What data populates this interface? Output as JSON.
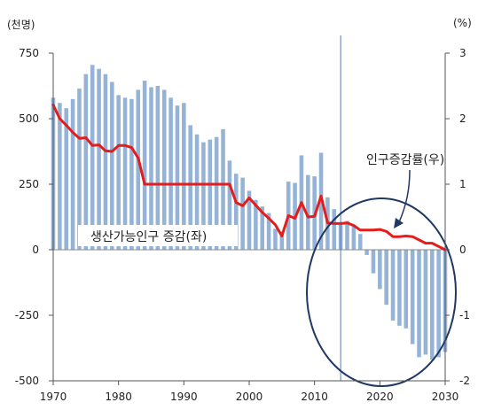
{
  "chart_data": {
    "type": "bar+line",
    "left_axis": {
      "unit_label": "(천명)",
      "ylim": [
        -500,
        750
      ],
      "ticks": [
        750,
        500,
        250,
        0,
        -250,
        -500
      ],
      "tick_labels": [
        "750",
        "500",
        "250",
        "0",
        "-250",
        "-500"
      ]
    },
    "right_axis": {
      "unit_label": "(%)",
      "ylim": [
        -2,
        3
      ],
      "ticks": [
        3,
        2,
        1,
        0,
        -1,
        -2
      ],
      "tick_labels": [
        "3",
        "2",
        "1",
        "0",
        "-1",
        "-2"
      ]
    },
    "x_axis": {
      "ticks": [
        1970,
        1980,
        1990,
        2000,
        2010,
        2020,
        2030
      ],
      "tick_labels": [
        "1970",
        "1980",
        "1990",
        "2000",
        "2010",
        "2020",
        "2030"
      ]
    },
    "series": [
      {
        "name": "생산가능인구 증감(좌)",
        "kind": "bar",
        "axis": "left",
        "color": "#95b3d7",
        "x": [
          1970,
          1971,
          1972,
          1973,
          1974,
          1975,
          1976,
          1977,
          1978,
          1979,
          1980,
          1981,
          1982,
          1983,
          1984,
          1985,
          1986,
          1987,
          1988,
          1989,
          1990,
          1991,
          1992,
          1993,
          1994,
          1995,
          1996,
          1997,
          1998,
          1999,
          2000,
          2001,
          2002,
          2003,
          2004,
          2005,
          2006,
          2007,
          2008,
          2009,
          2010,
          2011,
          2012,
          2013,
          2014,
          2015,
          2016,
          2017,
          2018,
          2019,
          2020,
          2021,
          2022,
          2023,
          2024,
          2025,
          2026,
          2027,
          2028,
          2029,
          2030
        ],
        "values": [
          580,
          560,
          540,
          575,
          615,
          670,
          705,
          690,
          670,
          640,
          590,
          580,
          575,
          610,
          645,
          620,
          625,
          610,
          580,
          550,
          560,
          475,
          440,
          410,
          420,
          430,
          460,
          340,
          290,
          275,
          225,
          190,
          165,
          140,
          80,
          70,
          260,
          255,
          360,
          285,
          280,
          370,
          200,
          155,
          100,
          110,
          90,
          60,
          -20,
          -90,
          -150,
          -210,
          -270,
          -290,
          -300,
          -360,
          -410,
          -400,
          -420,
          -410,
          -390
        ]
      },
      {
        "name": "인구증감률(우)",
        "kind": "line",
        "axis": "right",
        "color": "#e41c1c",
        "x": [
          1970,
          1971,
          1972,
          1973,
          1974,
          1975,
          1976,
          1977,
          1978,
          1979,
          1980,
          1981,
          1982,
          1983,
          1984,
          1985,
          1986,
          1987,
          1988,
          1989,
          1990,
          1991,
          1992,
          1993,
          1994,
          1995,
          1996,
          1997,
          1998,
          1999,
          2000,
          2001,
          2002,
          2003,
          2004,
          2005,
          2006,
          2007,
          2008,
          2009,
          2010,
          2011,
          2012,
          2013,
          2014,
          2015,
          2016,
          2017,
          2018,
          2019,
          2020,
          2021,
          2022,
          2023,
          2024,
          2025,
          2026,
          2027,
          2028,
          2029,
          2030
        ],
        "values": [
          2.21,
          2.0,
          1.9,
          1.79,
          1.7,
          1.71,
          1.59,
          1.6,
          1.51,
          1.5,
          1.59,
          1.59,
          1.56,
          1.4,
          1.0,
          1.0,
          1.0,
          1.0,
          1.0,
          1.0,
          1.0,
          1.0,
          1.0,
          1.0,
          1.0,
          1.0,
          1.0,
          1.0,
          0.72,
          0.67,
          0.79,
          0.68,
          0.57,
          0.48,
          0.38,
          0.21,
          0.52,
          0.48,
          0.72,
          0.5,
          0.51,
          0.82,
          0.41,
          0.4,
          0.4,
          0.41,
          0.37,
          0.3,
          0.3,
          0.3,
          0.31,
          0.28,
          0.2,
          0.2,
          0.21,
          0.2,
          0.15,
          0.1,
          0.1,
          0.05,
          0.0
        ]
      }
    ],
    "annotations": {
      "line_label": "인구증감률(우)",
      "bar_label": "생산가능인구 증감(좌)"
    },
    "reference_line_year": 2014,
    "highlight": "ellipse around 2015-2030 region",
    "colors": {
      "bar": "#95b3d7",
      "line": "#e41c1c",
      "ellipse": "#1f3864",
      "ref_line": "#5b78b8",
      "line_label": "#e41c1c"
    },
    "grid": false,
    "legend": "none"
  }
}
